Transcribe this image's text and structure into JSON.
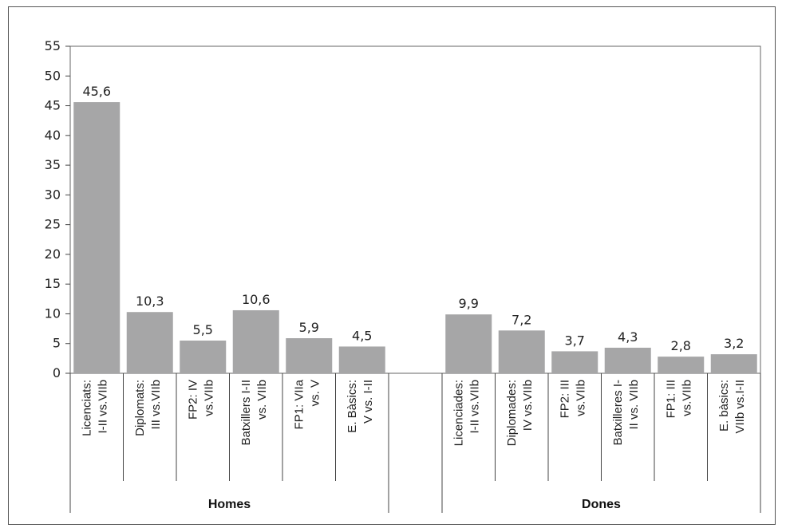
{
  "chart_data": {
    "type": "bar",
    "ylim": [
      0,
      55
    ],
    "yticks": [
      "0",
      "5",
      "10",
      "15",
      "20",
      "25",
      "30",
      "35",
      "40",
      "45",
      "50",
      "55"
    ],
    "groups": [
      {
        "name": "Homes",
        "categories": [
          [
            "Licenciats:",
            "I-II vs.VIIb"
          ],
          [
            "Diplomats:",
            "III vs.VIIb"
          ],
          [
            "FP2: IV",
            "vs.VIIb"
          ],
          [
            "Batxillers I-II",
            "vs. VIIb"
          ],
          [
            "FP1: VIIa",
            "vs. V"
          ],
          [
            "E. Bàsics:",
            "V vs. I-II"
          ]
        ],
        "values": [
          45.6,
          10.3,
          5.5,
          10.6,
          5.9,
          4.5
        ],
        "labels": [
          "45,6",
          "10,3",
          "5,5",
          "10,6",
          "5,9",
          "4,5"
        ]
      },
      {
        "name": "Dones",
        "categories": [
          [
            "Licenciades:",
            "I-II vs.VIIb"
          ],
          [
            "Diplomades:",
            "IV vs.VIIb"
          ],
          [
            "FP2: III",
            "vs.VIIb"
          ],
          [
            "Batxilleres I-",
            "II vs. VIIb"
          ],
          [
            "FP1: III",
            "vs.VIIb"
          ],
          [
            "E. bàsics:",
            "VIIb vs.I-II"
          ]
        ],
        "values": [
          9.9,
          7.2,
          3.7,
          4.3,
          2.8,
          3.2
        ],
        "labels": [
          "9,9",
          "7,2",
          "3,7",
          "4,3",
          "2,8",
          "3,2"
        ]
      }
    ],
    "bar_color": "#a6a6a7",
    "grid": false
  }
}
